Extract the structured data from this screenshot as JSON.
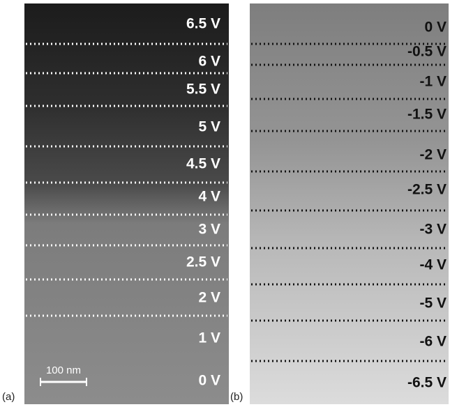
{
  "panels": {
    "a": {
      "label": "(a)",
      "scale_bar": "100 nm",
      "voltages": [
        "6.5 V",
        "6 V",
        "5.5 V",
        "5 V",
        "4.5 V",
        "4 V",
        "3 V",
        "2.5 V",
        "2 V",
        "1 V",
        "0 V"
      ]
    },
    "b": {
      "label": "(b)",
      "voltages": [
        "0 V",
        "-0.5 V",
        "-1 V",
        "-1.5 V",
        "-2 V",
        "-2.5 V",
        "-3 V",
        "-4 V",
        "-5 V",
        "-6 V",
        "-6.5 V"
      ]
    }
  }
}
